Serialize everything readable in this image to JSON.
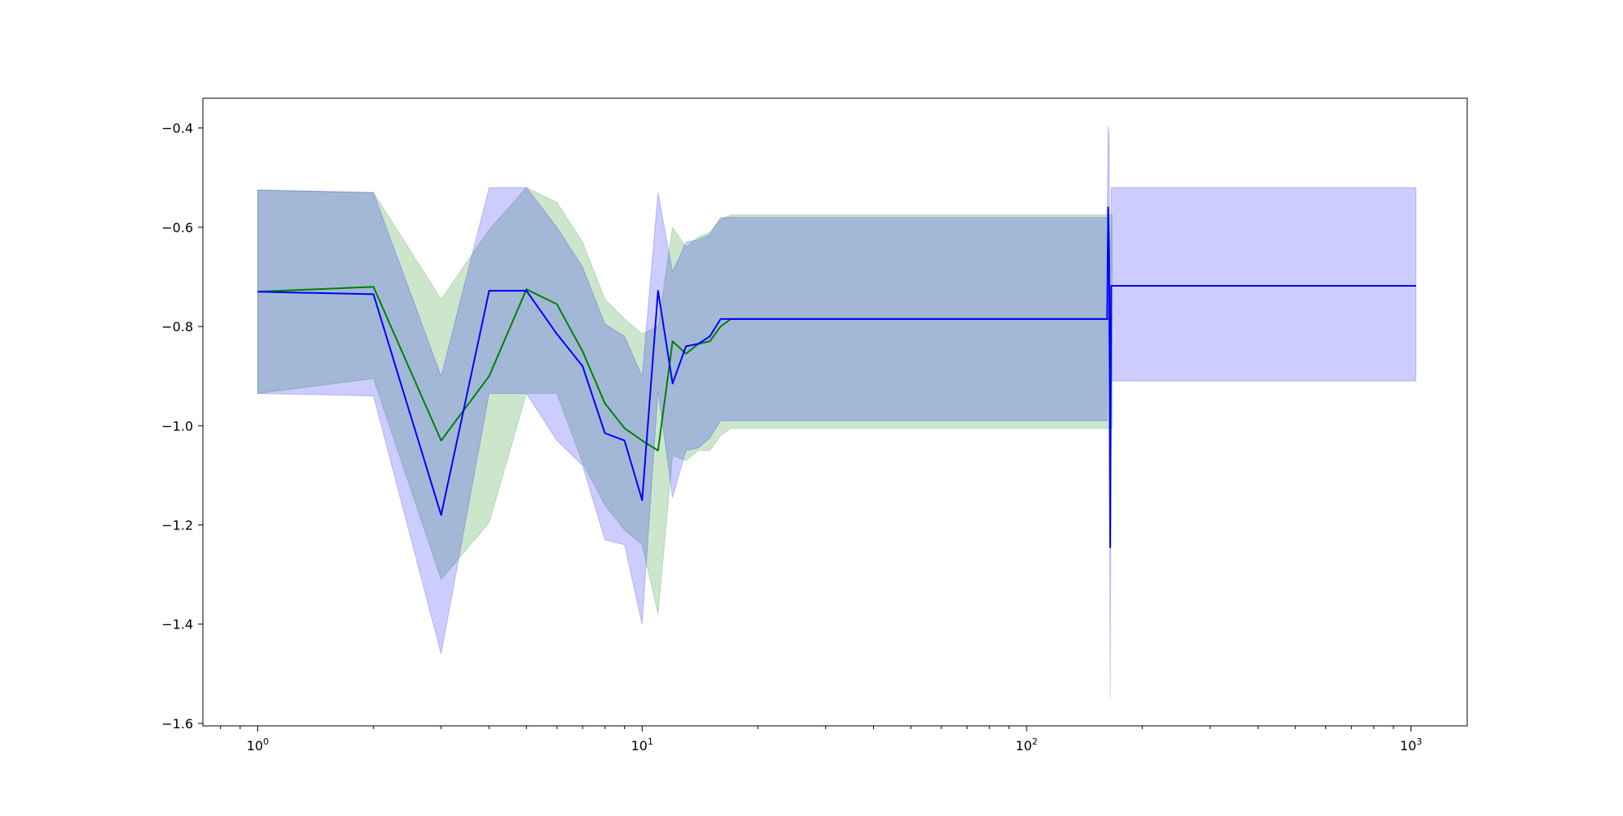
{
  "chart_data": {
    "type": "line",
    "title": "",
    "xlabel": "",
    "ylabel": "",
    "xscale": "log",
    "xlim": [
      0.72,
      1400
    ],
    "ylim": [
      -1.605,
      -0.34
    ],
    "grid": false,
    "legend": "none",
    "x_ticks": [
      {
        "value": 1,
        "base": "10",
        "exp": "0"
      },
      {
        "value": 10,
        "base": "10",
        "exp": "1"
      },
      {
        "value": 100,
        "base": "10",
        "exp": "2"
      },
      {
        "value": 1000,
        "base": "10",
        "exp": "3"
      }
    ],
    "y_ticks": [
      {
        "value": -0.4,
        "label": "−0.4"
      },
      {
        "value": -0.6,
        "label": "−0.6"
      },
      {
        "value": -0.8,
        "label": "−0.8"
      },
      {
        "value": -1.0,
        "label": "−1.0"
      },
      {
        "value": -1.2,
        "label": "−1.2"
      },
      {
        "value": -1.4,
        "label": "−1.4"
      },
      {
        "value": -1.6,
        "label": "−1.6"
      }
    ],
    "series": [
      {
        "id": "green",
        "line_color": "#008000",
        "band_color": "#008000",
        "band_opacity": 0.2,
        "x": [
          1,
          2,
          3,
          4,
          5,
          6,
          7,
          8,
          9,
          10,
          11,
          12,
          13,
          14,
          15,
          16,
          17,
          165,
          167
        ],
        "y": [
          -0.73,
          -0.72,
          -1.03,
          -0.9,
          -0.725,
          -0.755,
          -0.85,
          -0.955,
          -1.005,
          -1.03,
          -1.05,
          -0.83,
          -0.855,
          -0.835,
          -0.83,
          -0.8,
          -0.785,
          -0.785,
          -0.785
        ],
        "upper": [
          -0.525,
          -0.53,
          -0.745,
          -0.605,
          -0.52,
          -0.55,
          -0.63,
          -0.745,
          -0.785,
          -0.815,
          -0.8,
          -0.6,
          -0.64,
          -0.62,
          -0.61,
          -0.585,
          -0.575,
          -0.575,
          -0.575
        ],
        "lower": [
          -0.935,
          -0.905,
          -1.31,
          -1.195,
          -0.935,
          -0.935,
          -1.075,
          -1.16,
          -1.21,
          -1.24,
          -1.38,
          -1.06,
          -1.07,
          -1.05,
          -1.05,
          -1.02,
          -1.005,
          -1.005,
          -1.005
        ]
      },
      {
        "id": "blue",
        "line_color": "#0000ff",
        "band_color": "#0000ff",
        "band_opacity": 0.2,
        "x": [
          1,
          2,
          3,
          4,
          5,
          6,
          7,
          8,
          9,
          10,
          11,
          12,
          13,
          14,
          15,
          16,
          17,
          162,
          163,
          164,
          165,
          166,
          170,
          1030
        ],
        "y": [
          -0.73,
          -0.735,
          -1.18,
          -0.728,
          -0.728,
          -0.815,
          -0.88,
          -1.015,
          -1.03,
          -1.15,
          -0.728,
          -0.915,
          -0.84,
          -0.835,
          -0.82,
          -0.785,
          -0.785,
          -0.785,
          -0.56,
          -0.65,
          -1.245,
          -0.718,
          -0.718,
          -0.718
        ],
        "upper": [
          -0.525,
          -0.53,
          -0.9,
          -0.52,
          -0.52,
          -0.6,
          -0.68,
          -0.795,
          -0.82,
          -0.9,
          -0.53,
          -0.69,
          -0.63,
          -0.625,
          -0.615,
          -0.58,
          -0.58,
          -0.58,
          -0.395,
          -0.42,
          -0.92,
          -0.52,
          -0.52,
          -0.52
        ],
        "lower": [
          -0.935,
          -0.94,
          -1.46,
          -0.935,
          -0.935,
          -1.03,
          -1.08,
          -1.23,
          -1.24,
          -1.4,
          -0.93,
          -1.145,
          -1.05,
          -1.045,
          -1.025,
          -0.99,
          -0.99,
          -0.99,
          -0.72,
          -0.88,
          -1.55,
          -0.91,
          -0.91,
          -0.91
        ]
      }
    ]
  }
}
